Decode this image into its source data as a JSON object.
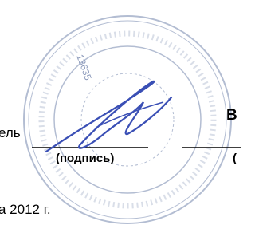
{
  "document": {
    "left_label": "ель",
    "right_label": "В",
    "signature_caption": "(подпись)",
    "right_caption": "(",
    "date": "а 2012 г.",
    "stamp_number": "13635"
  }
}
